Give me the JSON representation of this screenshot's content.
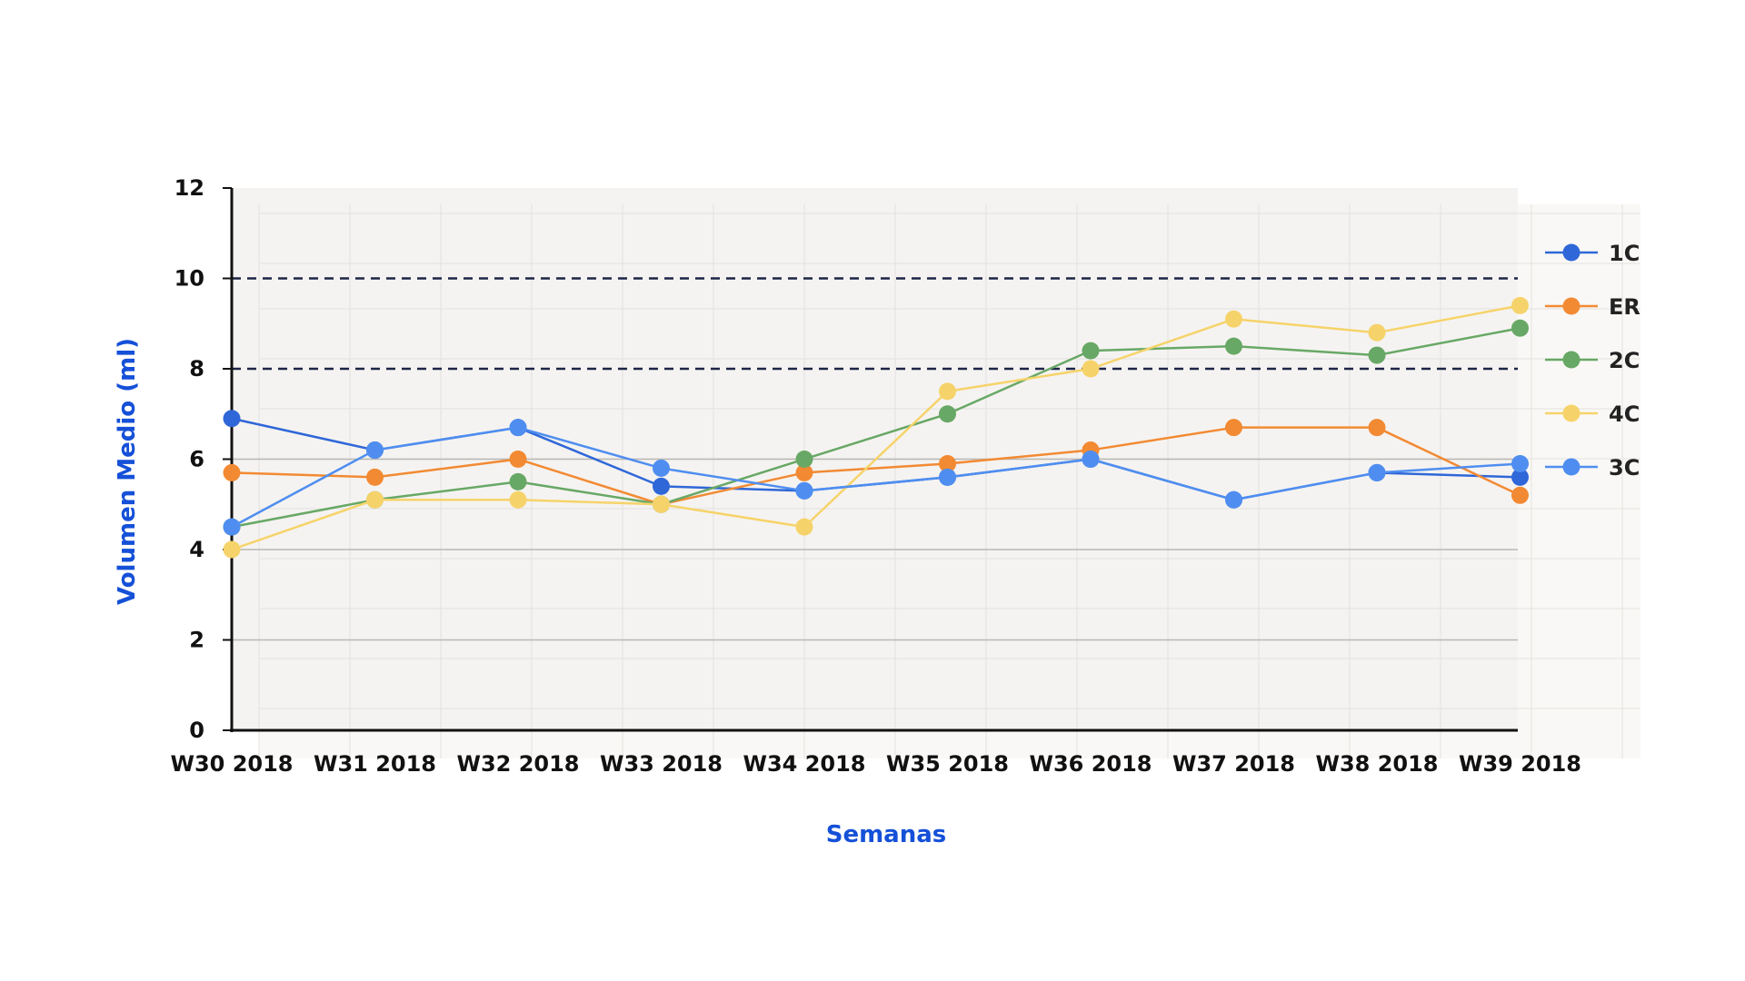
{
  "chart_data": {
    "type": "line",
    "xlabel": "Semanas",
    "ylabel": "Volumen Medio (ml)",
    "ylim": [
      0,
      12
    ],
    "y_ticks": [
      "0",
      "2",
      "4",
      "6",
      "8",
      "10",
      "12"
    ],
    "categories": [
      "W30 2018",
      "W31 2018",
      "W32 2018",
      "W33 2018",
      "W34 2018",
      "W35 2018",
      "W36 2018",
      "W37 2018",
      "W38 2018",
      "W39 2018"
    ],
    "reference_lines": [
      8,
      10
    ],
    "grid": true,
    "legend_position": "right",
    "series": [
      {
        "name": "1C",
        "color": "#2f67d8",
        "values": [
          6.9,
          6.2,
          6.7,
          5.4,
          5.3,
          5.6,
          6.0,
          5.1,
          5.7,
          5.6
        ]
      },
      {
        "name": "ER",
        "color": "#f28a33",
        "values": [
          5.7,
          5.6,
          6.0,
          5.0,
          5.7,
          5.9,
          6.2,
          6.7,
          6.7,
          5.2
        ]
      },
      {
        "name": "2C",
        "color": "#68a866",
        "values": [
          4.5,
          5.1,
          5.5,
          5.0,
          6.0,
          7.0,
          8.4,
          8.5,
          8.3,
          8.9
        ]
      },
      {
        "name": "4C",
        "color": "#f6d36a",
        "values": [
          4.0,
          5.1,
          5.1,
          5.0,
          4.5,
          7.5,
          8.0,
          9.1,
          8.8,
          9.4
        ]
      },
      {
        "name": "3C",
        "color": "#4f8ef0",
        "values": [
          4.5,
          6.2,
          6.7,
          5.8,
          5.3,
          5.6,
          6.0,
          5.1,
          5.7,
          5.9
        ]
      }
    ]
  }
}
